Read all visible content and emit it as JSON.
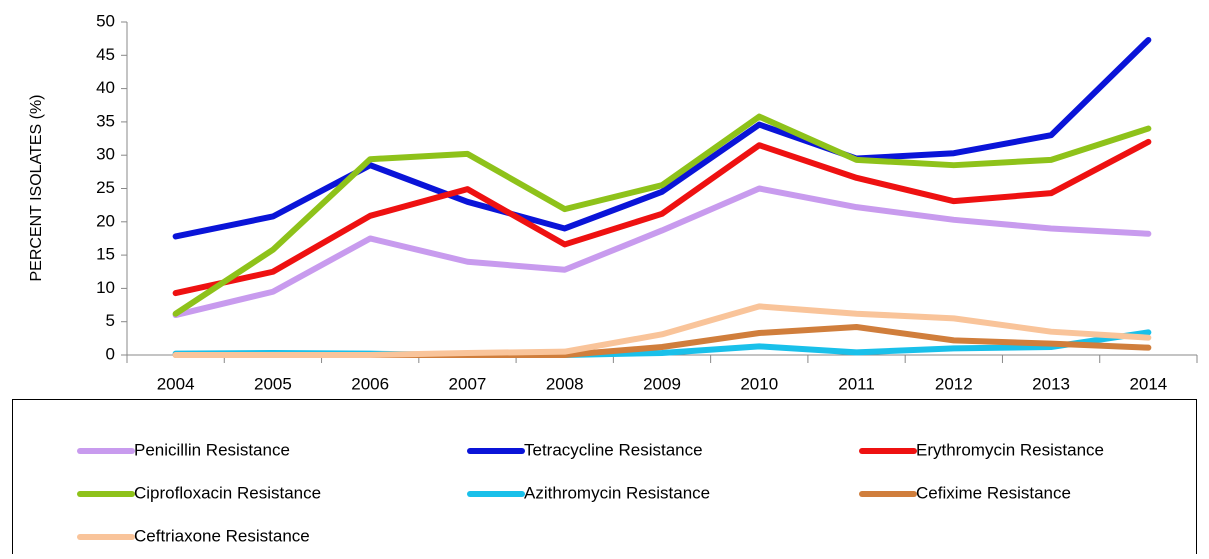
{
  "chart_data": {
    "type": "line",
    "y_label": "PERCENT ISOLATES (%)",
    "categories": [
      "2004",
      "2005",
      "2006",
      "2007",
      "2008",
      "2009",
      "2010",
      "2011",
      "2012",
      "2013",
      "2014"
    ],
    "ylim": [
      0,
      50
    ],
    "yticks": [
      0,
      5,
      10,
      15,
      20,
      25,
      30,
      35,
      40,
      45,
      50
    ],
    "series": [
      {
        "name": "Penicillin Resistance",
        "color": "#c89bee",
        "values": [
          6,
          9.5,
          17.5,
          14,
          12.8,
          18.7,
          25,
          22.2,
          20.3,
          19,
          18.2
        ]
      },
      {
        "name": "Tetracycline Resistance",
        "color": "#0a14d8",
        "values": [
          17.8,
          20.8,
          28.5,
          23,
          19,
          24.5,
          34.6,
          29.5,
          30.3,
          33,
          47.3
        ]
      },
      {
        "name": "Erythromycin Resistance",
        "color": "#ee1111",
        "values": [
          9.3,
          12.5,
          20.9,
          24.9,
          16.6,
          21.2,
          31.5,
          26.6,
          23.1,
          24.3,
          32
        ]
      },
      {
        "name": "Ciprofloxacin Resistance",
        "color": "#8ec21a",
        "values": [
          6.2,
          15.8,
          29.4,
          30.2,
          21.9,
          25.5,
          35.8,
          29.3,
          28.5,
          29.3,
          34
        ]
      },
      {
        "name": "Azithromycin Resistance",
        "color": "#19c0ea",
        "values": [
          0.2,
          0.3,
          0.2,
          0,
          0,
          0.3,
          1.3,
          0.4,
          1,
          1.2,
          3.4
        ]
      },
      {
        "name": "Cefixime Resistance",
        "color": "#d07e3c",
        "values": [
          0,
          0,
          0,
          0,
          0,
          1.2,
          3.3,
          4.2,
          2.2,
          1.7,
          1.1
        ]
      },
      {
        "name": "Ceftriaxone Resistance",
        "color": "#f9c49a",
        "values": [
          0,
          0,
          0,
          0.3,
          0.5,
          3.1,
          7.3,
          6.2,
          5.5,
          3.5,
          2.6
        ]
      }
    ]
  }
}
